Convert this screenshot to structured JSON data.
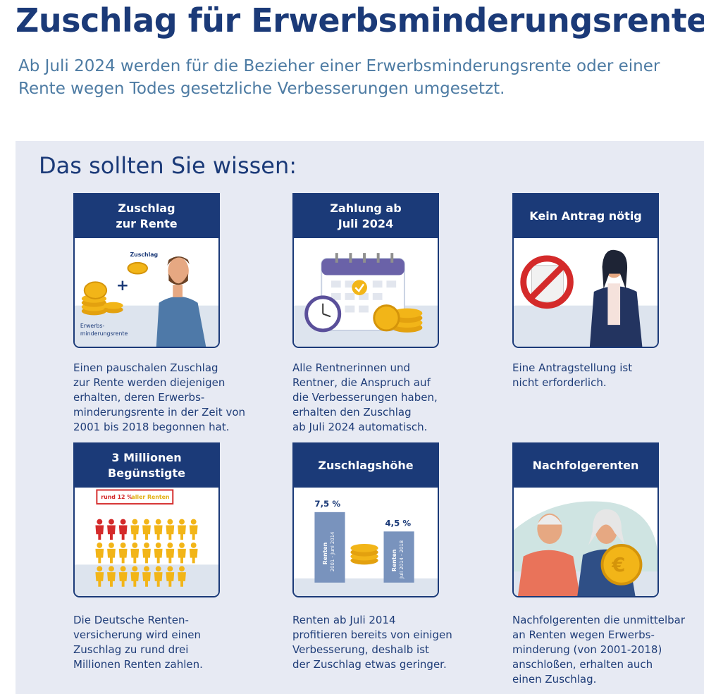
{
  "header": {
    "title": "Zuschlag für Erwerbsminderungsrenten",
    "subtitle": "Ab Juli 2024 werden für die Bezieher einer Erwerbsminderungsrente oder einer Rente wegen Todes gesetzliche Verbesserungen umgesetzt."
  },
  "section": {
    "title": "Das sollten Sie wissen:"
  },
  "colors": {
    "navy": "#1b3a78",
    "panel": "#e7eaf3",
    "subtitle": "#4d7ba3",
    "gold": "#f2b518",
    "red": "#d42a2a"
  },
  "cards": [
    {
      "header": "Zuschlag\nzur Rente",
      "icon": "man-with-coins-illustration",
      "labels": {
        "top": "Zuschlag",
        "bottom1": "Erwerbs-",
        "bottom2": "minderungsrente"
      },
      "text": "Einen pauschalen Zuschlag\nzur Rente werden diejenigen\nerhalten, deren Erwerbs-\nminderungsrente in der Zeit von\n2001 bis 2018 begonnen hat."
    },
    {
      "header": "Zahlung ab\nJuli 2024",
      "icon": "calendar-clock-coins-illustration",
      "text": "Alle Rentnerinnen und\nRentner, die Anspruch auf\ndie Verbesserungen haben,\nerhalten den Zuschlag\nab Juli 2024 automatisch."
    },
    {
      "header": "Kein Antrag nötig",
      "icon": "no-application-woman-illustration",
      "text": "Eine Antragstellung ist\nnicht erforderlich."
    },
    {
      "header": "3 Millionen\nBegünstigte",
      "icon": "people-grid-illustration",
      "labels": {
        "callout_prefix": "rund 12 %",
        "callout_suffix": "aller Renten"
      },
      "text": "Die Deutsche Renten-\nversicherung wird einen\nZuschlag zu rund drei\nMillionen Renten zahlen."
    },
    {
      "header": "Zuschlagshöhe",
      "icon": "percentage-bars-illustration",
      "labels": {
        "left_value": "7,5 %",
        "left_bar1": "Renten",
        "left_bar2": "2001 - Juni 2014",
        "right_value": "4,5 %",
        "right_bar1": "Renten",
        "right_bar2": "Juli 2014 - 2018"
      },
      "text": "Renten ab Juli 2014\nprofitieren bereits von einigen\nVerbesserung, deshalb ist\nder Zuschlag etwas geringer."
    },
    {
      "header": "Nachfolgerenten",
      "icon": "elderly-couple-coin-illustration",
      "text": "Nachfolgerenten die unmittelbar\nan Renten wegen Erwerbs-\nminderung (von 2001-2018)\nanschloßen, erhalten auch\neinen Zuschlag."
    }
  ]
}
